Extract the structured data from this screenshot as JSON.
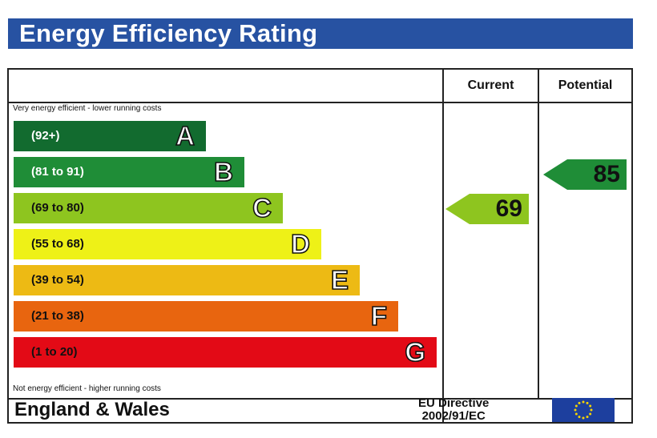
{
  "title": "Energy Efficiency Rating",
  "columns": {
    "current": "Current",
    "potential": "Potential"
  },
  "notes": {
    "top": "Very energy efficient - lower running costs",
    "bottom": "Not energy efficient - higher running costs"
  },
  "footer": {
    "region": "England & Wales",
    "directive_line1": "EU Directive",
    "directive_line2": "2002/91/EC",
    "flag_icon": "eu-flag-icon"
  },
  "colors": {
    "title_bar": "#2752a2",
    "flag": "#1d3f9e",
    "star": "#f7d500"
  },
  "chart_data": {
    "type": "bar",
    "title": "Energy Efficiency Rating",
    "categories": [
      "A",
      "B",
      "C",
      "D",
      "E",
      "F",
      "G"
    ],
    "bands": [
      {
        "letter": "A",
        "range": "(92+)",
        "min": 92,
        "max": 100,
        "color": "#126b2f",
        "text_color": "#ffffff"
      },
      {
        "letter": "B",
        "range": "(81 to 91)",
        "min": 81,
        "max": 91,
        "color": "#1f8d37",
        "text_color": "#ffffff"
      },
      {
        "letter": "C",
        "range": "(69 to 80)",
        "min": 69,
        "max": 80,
        "color": "#8ec51f",
        "text_color": "#111111"
      },
      {
        "letter": "D",
        "range": "(55 to 68)",
        "min": 55,
        "max": 68,
        "color": "#eef117",
        "text_color": "#111111"
      },
      {
        "letter": "E",
        "range": "(39 to 54)",
        "min": 39,
        "max": 54,
        "color": "#edba14",
        "text_color": "#111111"
      },
      {
        "letter": "F",
        "range": "(21 to 38)",
        "min": 21,
        "max": 38,
        "color": "#e8650f",
        "text_color": "#111111"
      },
      {
        "letter": "G",
        "range": "(1 to 20)",
        "min": 1,
        "max": 20,
        "color": "#e30a16",
        "text_color": "#111111"
      }
    ],
    "ratings": [
      {
        "column": "Current",
        "value": 69,
        "band": "C",
        "color": "#8ec51f"
      },
      {
        "column": "Potential",
        "value": 85,
        "band": "B",
        "color": "#1f8d37"
      }
    ]
  }
}
